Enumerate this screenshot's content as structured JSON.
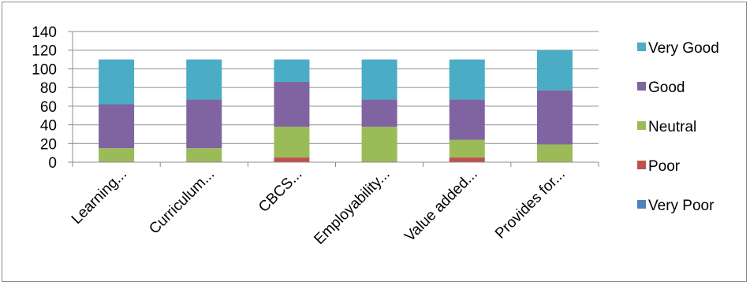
{
  "chart_data": {
    "type": "bar",
    "stacked": true,
    "title": "",
    "xlabel": "",
    "ylabel": "",
    "ylim": [
      0,
      140
    ],
    "yticks": [
      0,
      20,
      40,
      60,
      80,
      100,
      120,
      140
    ],
    "grid": true,
    "legend_position": "right",
    "categories": [
      "Learning...",
      "Curriculum...",
      "CBCS...",
      "Employability...",
      "Value added...",
      "Provides for..."
    ],
    "series": [
      {
        "name": "Very Poor",
        "color": "#4F81BD",
        "values": [
          0,
          0,
          0,
          0,
          0,
          0
        ]
      },
      {
        "name": "Poor",
        "color": "#C0504D",
        "values": [
          0,
          0,
          5,
          0,
          5,
          0
        ]
      },
      {
        "name": "Neutral",
        "color": "#9BBB59",
        "values": [
          15,
          15,
          33,
          38,
          19,
          19
        ]
      },
      {
        "name": "Good",
        "color": "#8064A2",
        "values": [
          47,
          52,
          48,
          29,
          43,
          58
        ]
      },
      {
        "name": "Very Good",
        "color": "#4BACC6",
        "values": [
          48,
          43,
          24,
          43,
          43,
          43
        ]
      }
    ],
    "legend_order": [
      "Very Good",
      "Good",
      "Neutral",
      "Poor",
      "Very Poor"
    ]
  }
}
